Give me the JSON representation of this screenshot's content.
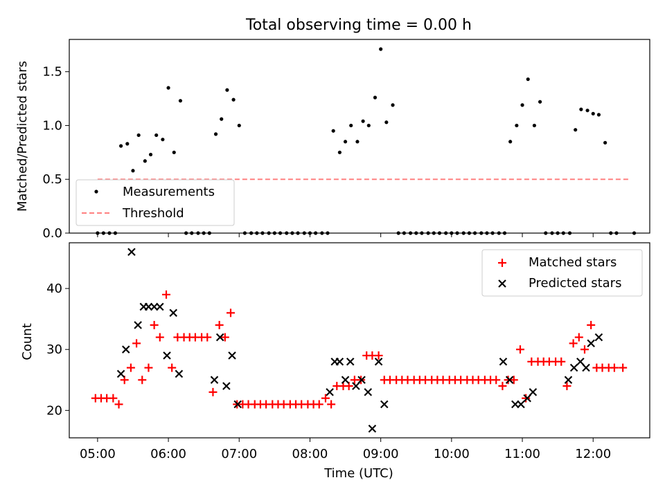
{
  "title": "Total observing time = 0.00 h",
  "chart_data": [
    {
      "type": "scatter",
      "ylabel": "Matched/Predicted stars",
      "ylim": [
        0,
        1.8
      ],
      "yticks": [
        0.0,
        0.5,
        1.0,
        1.5
      ],
      "ytick_labels": [
        "0.0",
        "0.5",
        "1.0",
        "1.5"
      ],
      "legend_position": "lower-left",
      "series": [
        {
          "name": "Measurements",
          "color": "#000000",
          "marker": "dot",
          "points": [
            [
              5.0,
              0
            ],
            [
              5.083,
              0
            ],
            [
              5.167,
              0
            ],
            [
              5.25,
              0
            ],
            [
              5.33,
              0.81
            ],
            [
              5.42,
              0.83
            ],
            [
              5.5,
              0.58
            ],
            [
              5.58,
              0.91
            ],
            [
              5.67,
              0.67
            ],
            [
              5.75,
              0.73
            ],
            [
              5.83,
              0.91
            ],
            [
              5.92,
              0.87
            ],
            [
              6.0,
              1.35
            ],
            [
              6.08,
              0.75
            ],
            [
              6.17,
              1.23
            ],
            [
              6.25,
              0
            ],
            [
              6.33,
              0
            ],
            [
              6.42,
              0
            ],
            [
              6.5,
              0
            ],
            [
              6.58,
              0
            ],
            [
              6.67,
              0.92
            ],
            [
              6.75,
              1.06
            ],
            [
              6.83,
              1.33
            ],
            [
              6.92,
              1.24
            ],
            [
              7.0,
              1.0
            ],
            [
              7.08,
              0
            ],
            [
              7.17,
              0
            ],
            [
              7.25,
              0
            ],
            [
              7.33,
              0
            ],
            [
              7.42,
              0
            ],
            [
              7.5,
              0
            ],
            [
              7.58,
              0
            ],
            [
              7.67,
              0
            ],
            [
              7.75,
              0
            ],
            [
              7.83,
              0
            ],
            [
              7.92,
              0
            ],
            [
              8.0,
              0
            ],
            [
              8.08,
              0
            ],
            [
              8.17,
              0
            ],
            [
              8.25,
              0
            ],
            [
              8.33,
              0.95
            ],
            [
              8.42,
              0.75
            ],
            [
              8.5,
              0.85
            ],
            [
              8.58,
              1.0
            ],
            [
              8.67,
              0.85
            ],
            [
              8.75,
              1.04
            ],
            [
              8.83,
              1.0
            ],
            [
              8.92,
              1.26
            ],
            [
              9.0,
              1.71
            ],
            [
              9.08,
              1.03
            ],
            [
              9.17,
              1.19
            ],
            [
              9.25,
              0
            ],
            [
              9.33,
              0
            ],
            [
              9.42,
              0
            ],
            [
              9.5,
              0
            ],
            [
              9.58,
              0
            ],
            [
              9.67,
              0
            ],
            [
              9.75,
              0
            ],
            [
              9.83,
              0
            ],
            [
              9.92,
              0
            ],
            [
              10.0,
              0
            ],
            [
              10.08,
              0
            ],
            [
              10.17,
              0
            ],
            [
              10.25,
              0
            ],
            [
              10.33,
              0
            ],
            [
              10.42,
              0
            ],
            [
              10.5,
              0
            ],
            [
              10.58,
              0
            ],
            [
              10.67,
              0
            ],
            [
              10.75,
              0
            ],
            [
              10.83,
              0.85
            ],
            [
              10.92,
              1.0
            ],
            [
              11.0,
              1.19
            ],
            [
              11.08,
              1.43
            ],
            [
              11.17,
              1.0
            ],
            [
              11.25,
              1.22
            ],
            [
              11.33,
              0
            ],
            [
              11.42,
              0
            ],
            [
              11.5,
              0
            ],
            [
              11.58,
              0
            ],
            [
              11.67,
              0
            ],
            [
              11.75,
              0.96
            ],
            [
              11.83,
              1.15
            ],
            [
              11.92,
              1.14
            ],
            [
              12.0,
              1.11
            ],
            [
              12.08,
              1.1
            ],
            [
              12.17,
              0.84
            ],
            [
              12.25,
              0
            ],
            [
              12.33,
              0
            ],
            [
              12.58,
              0
            ]
          ]
        },
        {
          "name": "Threshold",
          "color": "#ff8080",
          "style": "dashed",
          "x": [
            5.0,
            12.5
          ],
          "y": [
            0.5,
            0.5
          ]
        }
      ]
    },
    {
      "type": "scatter",
      "xlabel": "Time (UTC)",
      "ylabel": "Count",
      "ylim": [
        15.5,
        47.5
      ],
      "yticks": [
        20,
        30,
        40
      ],
      "ytick_labels": [
        "20",
        "30",
        "40"
      ],
      "xlim": [
        4.6,
        12.8
      ],
      "xticks": [
        5,
        6,
        7,
        8,
        9,
        10,
        11,
        12
      ],
      "xtick_labels": [
        "05:00",
        "06:00",
        "07:00",
        "08:00",
        "09:00",
        "10:00",
        "11:00",
        "12:00"
      ],
      "legend_position": "upper-right",
      "series": [
        {
          "name": "Matched stars",
          "color": "#ff0000",
          "marker": "plus",
          "points": [
            [
              4.97,
              22
            ],
            [
              5.05,
              22
            ],
            [
              5.13,
              22
            ],
            [
              5.22,
              22
            ],
            [
              5.3,
              21
            ],
            [
              5.38,
              25
            ],
            [
              5.47,
              27
            ],
            [
              5.55,
              31
            ],
            [
              5.63,
              25
            ],
            [
              5.72,
              27
            ],
            [
              5.8,
              34
            ],
            [
              5.88,
              32
            ],
            [
              5.97,
              39
            ],
            [
              6.05,
              27
            ],
            [
              6.13,
              32
            ],
            [
              6.22,
              32
            ],
            [
              6.3,
              32
            ],
            [
              6.38,
              32
            ],
            [
              6.47,
              32
            ],
            [
              6.55,
              32
            ],
            [
              6.63,
              23
            ],
            [
              6.72,
              34
            ],
            [
              6.8,
              32
            ],
            [
              6.88,
              36
            ],
            [
              6.97,
              21
            ],
            [
              7.05,
              21
            ],
            [
              7.13,
              21
            ],
            [
              7.22,
              21
            ],
            [
              7.3,
              21
            ],
            [
              7.38,
              21
            ],
            [
              7.47,
              21
            ],
            [
              7.55,
              21
            ],
            [
              7.63,
              21
            ],
            [
              7.72,
              21
            ],
            [
              7.8,
              21
            ],
            [
              7.88,
              21
            ],
            [
              7.97,
              21
            ],
            [
              8.05,
              21
            ],
            [
              8.13,
              21
            ],
            [
              8.22,
              22
            ],
            [
              8.3,
              21
            ],
            [
              8.38,
              24
            ],
            [
              8.47,
              24
            ],
            [
              8.55,
              24
            ],
            [
              8.63,
              25
            ],
            [
              8.72,
              25
            ],
            [
              8.8,
              29
            ],
            [
              8.88,
              29
            ],
            [
              8.97,
              29
            ],
            [
              9.05,
              25
            ],
            [
              9.13,
              25
            ],
            [
              9.22,
              25
            ],
            [
              9.3,
              25
            ],
            [
              9.38,
              25
            ],
            [
              9.47,
              25
            ],
            [
              9.55,
              25
            ],
            [
              9.63,
              25
            ],
            [
              9.72,
              25
            ],
            [
              9.8,
              25
            ],
            [
              9.88,
              25
            ],
            [
              9.97,
              25
            ],
            [
              10.05,
              25
            ],
            [
              10.13,
              25
            ],
            [
              10.22,
              25
            ],
            [
              10.3,
              25
            ],
            [
              10.38,
              25
            ],
            [
              10.47,
              25
            ],
            [
              10.55,
              25
            ],
            [
              10.63,
              25
            ],
            [
              10.72,
              24
            ],
            [
              10.8,
              25
            ],
            [
              10.88,
              25
            ],
            [
              10.97,
              30
            ],
            [
              11.05,
              22
            ],
            [
              11.13,
              28
            ],
            [
              11.22,
              28
            ],
            [
              11.3,
              28
            ],
            [
              11.38,
              28
            ],
            [
              11.47,
              28
            ],
            [
              11.55,
              28
            ],
            [
              11.63,
              24
            ],
            [
              11.72,
              31
            ],
            [
              11.8,
              32
            ],
            [
              11.88,
              30
            ],
            [
              11.97,
              34
            ],
            [
              12.05,
              27
            ],
            [
              12.13,
              27
            ],
            [
              12.22,
              27
            ],
            [
              12.3,
              27
            ],
            [
              12.42,
              27
            ]
          ]
        },
        {
          "name": "Predicted stars",
          "color": "#000000",
          "marker": "x",
          "points": [
            [
              5.33,
              26
            ],
            [
              5.4,
              30
            ],
            [
              5.48,
              46
            ],
            [
              5.57,
              34
            ],
            [
              5.65,
              37
            ],
            [
              5.72,
              37
            ],
            [
              5.8,
              37
            ],
            [
              5.88,
              37
            ],
            [
              5.98,
              29
            ],
            [
              6.07,
              36
            ],
            [
              6.15,
              26
            ],
            [
              6.65,
              25
            ],
            [
              6.73,
              32
            ],
            [
              6.82,
              24
            ],
            [
              6.9,
              29
            ],
            [
              6.98,
              21
            ],
            [
              8.28,
              23
            ],
            [
              8.35,
              28
            ],
            [
              8.42,
              28
            ],
            [
              8.5,
              25
            ],
            [
              8.57,
              28
            ],
            [
              8.65,
              24
            ],
            [
              8.73,
              25
            ],
            [
              8.82,
              23
            ],
            [
              8.88,
              17
            ],
            [
              8.97,
              28
            ],
            [
              9.05,
              21
            ],
            [
              10.73,
              28
            ],
            [
              10.82,
              25
            ],
            [
              10.9,
              21
            ],
            [
              10.98,
              21
            ],
            [
              11.07,
              22
            ],
            [
              11.15,
              23
            ],
            [
              11.65,
              25
            ],
            [
              11.73,
              27
            ],
            [
              11.82,
              28
            ],
            [
              11.9,
              27
            ],
            [
              11.97,
              31
            ],
            [
              12.08,
              32
            ]
          ]
        }
      ]
    }
  ]
}
